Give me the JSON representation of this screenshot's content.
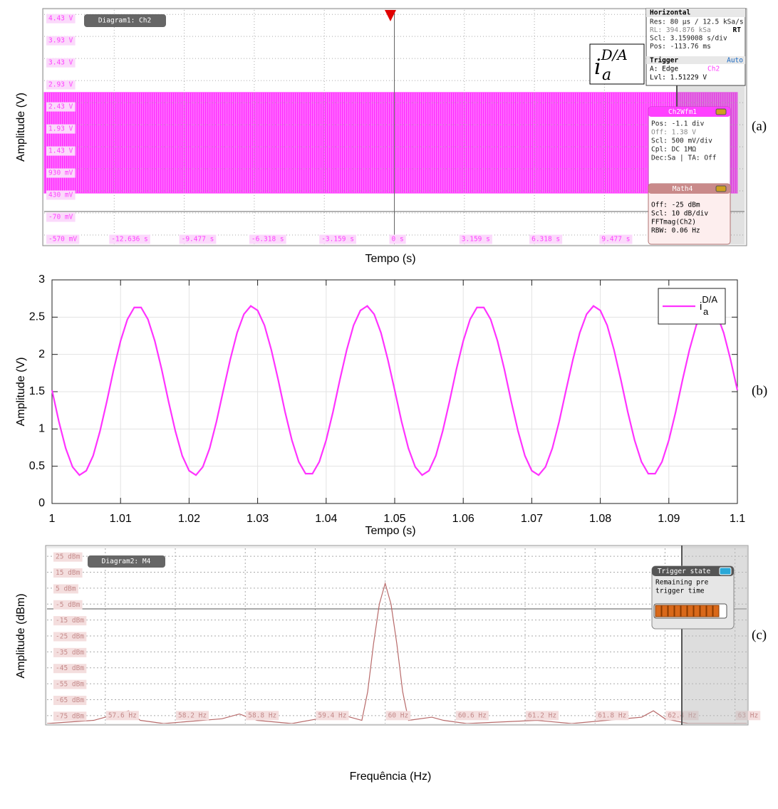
{
  "chart_data": [
    {
      "type": "scope_band",
      "panel_label": "(a)",
      "ylabel": "Amplitude (V)",
      "xlabel": "Tempo (s)",
      "diagram_label": "Diagram1: Ch2",
      "color": "#ff40ff",
      "envelope": {
        "min": 0.38,
        "max": 2.66
      },
      "ylim": [
        -0.78,
        4.53
      ],
      "yticks": [
        {
          "value": 4.43,
          "label": "4.43 V"
        },
        {
          "value": 3.93,
          "label": "3.93 V"
        },
        {
          "value": 3.43,
          "label": "3.43 V"
        },
        {
          "value": 2.93,
          "label": "2.93 V"
        },
        {
          "value": 2.43,
          "label": "2.43 V"
        },
        {
          "value": 1.93,
          "label": "1.93 V"
        },
        {
          "value": 1.43,
          "label": "1.43 V"
        },
        {
          "value": 0.93,
          "label": "930 mV"
        },
        {
          "value": 0.43,
          "label": "430 mV"
        },
        {
          "value": -0.07,
          "label": "-70 mV"
        },
        {
          "value": -0.57,
          "label": "-570 mV"
        }
      ],
      "xlim": [
        -15.795,
        15.795
      ],
      "xticks": [
        {
          "value": -12.636,
          "label": "-12.636 s"
        },
        {
          "value": -9.477,
          "label": "-9.477 s"
        },
        {
          "value": -6.318,
          "label": "-6.318 s"
        },
        {
          "value": -3.159,
          "label": "-3.159 s"
        },
        {
          "value": 0,
          "label": "0 s"
        },
        {
          "value": 3.159,
          "label": "3.159 s"
        },
        {
          "value": 6.318,
          "label": "6.318 s"
        },
        {
          "value": 9.477,
          "label": "9.477 s"
        }
      ],
      "annotation": {
        "base": "i",
        "sub": "a",
        "sup": "D/A"
      },
      "horizontal": {
        "title": "Horizontal",
        "tag": "RT",
        "lines": [
          "Res: 80 µs / 12.5 kSa/s",
          "RL:  394.876 kSa",
          "Scl: 3.159008 s/div",
          "Pos: -113.76 ms"
        ]
      },
      "trigger": {
        "title": "Trigger",
        "mode": "Auto",
        "edge": "A:   Edge",
        "source": "Ch2",
        "level": "Lvl: 1.51229 V"
      },
      "channel_box": {
        "title": "Ch2Wfm1",
        "lines": [
          "Pos: -1.1 div",
          "Off: 1.38 V",
          "Scl: 500 mV/div",
          "Cpl: DC 1MΩ",
          "Dec:Sa | TA: Off"
        ]
      },
      "math_box": {
        "title": "Math4",
        "lines": [
          "Off:  -25 dBm",
          "Scl:  10 dB/div",
          "FFTmag(Ch2)",
          "RBW: 0.06 Hz"
        ]
      }
    },
    {
      "type": "line",
      "panel_label": "(b)",
      "ylabel": "Amplitude (V)",
      "xlabel": "Tempo (s)",
      "grid": true,
      "legend": "upper right",
      "xlim": [
        1,
        1.1
      ],
      "xticks": [
        1,
        1.01,
        1.02,
        1.03,
        1.04,
        1.05,
        1.06,
        1.07,
        1.08,
        1.09,
        1.1
      ],
      "ylim": [
        0,
        3
      ],
      "yticks": [
        0,
        0.5,
        1,
        1.5,
        2,
        2.5,
        3
      ],
      "x": [
        1,
        1.001,
        1.002,
        1.003,
        1.004,
        1.005,
        1.006,
        1.007,
        1.008,
        1.009,
        1.01,
        1.011,
        1.012,
        1.013,
        1.014,
        1.015,
        1.016,
        1.017,
        1.018,
        1.019,
        1.02,
        1.021,
        1.022,
        1.023,
        1.024,
        1.025,
        1.026,
        1.027,
        1.028,
        1.029,
        1.03,
        1.031,
        1.032,
        1.033,
        1.034,
        1.035,
        1.036,
        1.037,
        1.038,
        1.039,
        1.04,
        1.041,
        1.042,
        1.043,
        1.044,
        1.045,
        1.046,
        1.047,
        1.048,
        1.049,
        1.05,
        1.051,
        1.052,
        1.053,
        1.054,
        1.055,
        1.056,
        1.057,
        1.058,
        1.059,
        1.06,
        1.061,
        1.062,
        1.063,
        1.064,
        1.065,
        1.066,
        1.067,
        1.068,
        1.069,
        1.07,
        1.071,
        1.072,
        1.073,
        1.074,
        1.075,
        1.076,
        1.077,
        1.078,
        1.079,
        1.08,
        1.081,
        1.082,
        1.083,
        1.084,
        1.085,
        1.086,
        1.087,
        1.088,
        1.089,
        1.09,
        1.091,
        1.092,
        1.093,
        1.094,
        1.095,
        1.096,
        1.097,
        1.098,
        1.099,
        1.1
      ],
      "series": [
        {
          "name": "i",
          "name_sub": "a",
          "name_sup": "D/A",
          "color": "#ff33ff",
          "values": [
            1.52,
            1.1,
            0.74,
            0.49,
            0.38,
            0.44,
            0.64,
            0.97,
            1.37,
            1.8,
            2.18,
            2.47,
            2.63,
            2.63,
            2.47,
            2.18,
            1.8,
            1.37,
            0.97,
            0.64,
            0.44,
            0.38,
            0.49,
            0.74,
            1.1,
            1.52,
            1.93,
            2.29,
            2.54,
            2.65,
            2.59,
            2.39,
            2.06,
            1.66,
            1.23,
            0.85,
            0.56,
            0.4,
            0.4,
            0.56,
            0.85,
            1.23,
            1.66,
            2.06,
            2.39,
            2.59,
            2.65,
            2.54,
            2.29,
            1.93,
            1.52,
            1.1,
            0.74,
            0.49,
            0.38,
            0.44,
            0.64,
            0.97,
            1.37,
            1.8,
            2.18,
            2.47,
            2.63,
            2.63,
            2.47,
            2.18,
            1.8,
            1.37,
            0.97,
            0.64,
            0.44,
            0.38,
            0.49,
            0.74,
            1.1,
            1.52,
            1.93,
            2.29,
            2.54,
            2.65,
            2.59,
            2.39,
            2.06,
            1.66,
            1.23,
            0.85,
            0.56,
            0.4,
            0.4,
            0.56,
            0.85,
            1.23,
            1.66,
            2.06,
            2.39,
            2.59,
            2.65,
            2.54,
            2.29,
            1.93,
            1.52
          ]
        }
      ]
    },
    {
      "type": "scope_line",
      "panel_label": "(c)",
      "ylabel": "Amplitude (dBm)",
      "xlabel": "Frequência (Hz)",
      "diagram_label": "Diagram2: M4",
      "color": "#b86a6a",
      "ylim": [
        -80,
        30
      ],
      "yticks": [
        {
          "value": 25,
          "label": "25 dBm"
        },
        {
          "value": 15,
          "label": "15 dBm"
        },
        {
          "value": 5,
          "label": "5 dBm"
        },
        {
          "value": -5,
          "label": "-5 dBm"
        },
        {
          "value": -15,
          "label": "-15 dBm"
        },
        {
          "value": -25,
          "label": "-25 dBm"
        },
        {
          "value": -35,
          "label": "-35 dBm"
        },
        {
          "value": -45,
          "label": "-45 dBm"
        },
        {
          "value": -55,
          "label": "-55 dBm"
        },
        {
          "value": -65,
          "label": "-65 dBm"
        },
        {
          "value": -75,
          "label": "-75 dBm"
        }
      ],
      "xlim": [
        57.1,
        63.1
      ],
      "xticks": [
        {
          "value": 57.6,
          "label": "57.6 Hz"
        },
        {
          "value": 58.2,
          "label": "58.2 Hz"
        },
        {
          "value": 58.8,
          "label": "58.8 Hz"
        },
        {
          "value": 59.4,
          "label": "59.4 Hz"
        },
        {
          "value": 60,
          "label": "60 Hz"
        },
        {
          "value": 60.6,
          "label": "60.6 Hz"
        },
        {
          "value": 61.2,
          "label": "61.2 Hz"
        },
        {
          "value": 61.8,
          "label": "61.8 Hz"
        },
        {
          "value": 62.4,
          "label": "62.4 Hz"
        },
        {
          "value": 63,
          "label": "63 Hz"
        }
      ],
      "x": [
        57.1,
        57.5,
        57.7,
        57.8,
        57.9,
        58.1,
        58.6,
        58.75,
        58.9,
        59.2,
        59.5,
        59.6,
        59.7,
        59.8,
        59.85,
        59.9,
        59.95,
        60,
        60.05,
        60.1,
        60.15,
        60.2,
        60.4,
        60.5,
        60.7,
        61.3,
        61.6,
        62.2,
        62.3,
        62.4,
        62.6,
        63.1
      ],
      "values": [
        -80,
        -78,
        -74,
        -72,
        -78,
        -80,
        -77,
        -74,
        -78,
        -80,
        -76,
        -73,
        -76,
        -78,
        -60,
        -30,
        -5,
        8,
        -5,
        -30,
        -60,
        -78,
        -76,
        -78,
        -80,
        -78,
        -80,
        -76,
        -72,
        -77,
        -80,
        -80
      ],
      "trigger_state": {
        "title": "Trigger state",
        "lines": [
          "Remaining pre",
          "trigger time"
        ]
      }
    }
  ]
}
